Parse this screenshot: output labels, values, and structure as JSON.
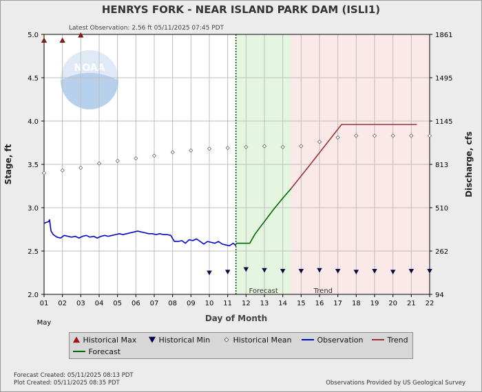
{
  "chart_data": {
    "type": "line",
    "title": "HENRYS FORK - NEAR ISLAND PARK DAM  (ISLI1)",
    "subtitle": "Latest Observation: 2.56 ft 05/11/2025 07:45 PDT",
    "xlabel": "Day of Month",
    "ylabel_left": "Stage, ft",
    "ylabel_right": "Discharge, cfs",
    "month_label": "May",
    "xlim": [
      1,
      22
    ],
    "ylim": [
      2.0,
      5.0
    ],
    "x_ticks": [
      "01",
      "02",
      "03",
      "04",
      "05",
      "06",
      "07",
      "08",
      "09",
      "10",
      "11",
      "12",
      "13",
      "14",
      "15",
      "16",
      "17",
      "18",
      "19",
      "20",
      "21",
      "22"
    ],
    "y_ticks": [
      2.0,
      2.5,
      3.0,
      3.5,
      4.0,
      4.5,
      5.0
    ],
    "y_tick_labels": [
      "2.0",
      "2.5",
      "3.0",
      "3.5",
      "4.0",
      "4.5",
      "5.0"
    ],
    "right_axis_ticks": [
      {
        "stage": 2.0,
        "label": "94"
      },
      {
        "stage": 2.5,
        "label": "262"
      },
      {
        "stage": 3.0,
        "label": "510"
      },
      {
        "stage": 3.5,
        "label": "813"
      },
      {
        "stage": 4.0,
        "label": "1145"
      },
      {
        "stage": 4.5,
        "label": "1495"
      },
      {
        "stage": 5.0,
        "label": "1861"
      }
    ],
    "grid": true,
    "observation_time": 11.45,
    "regions": [
      {
        "name": "Forecast",
        "from": 11.45,
        "to": 14.45,
        "color": "#e4f6e0"
      },
      {
        "name": "Trend",
        "from": 14.45,
        "to": 22.0,
        "color": "#fbe8e8"
      }
    ],
    "series": [
      {
        "name": "Observation",
        "color": "#0000cc",
        "style": "line",
        "x": [
          1.0,
          1.12,
          1.25,
          1.3,
          1.38,
          1.5,
          1.7,
          1.9,
          2.1,
          2.3,
          2.5,
          2.7,
          2.9,
          3.1,
          3.3,
          3.5,
          3.7,
          3.9,
          4.1,
          4.3,
          4.5,
          4.7,
          4.9,
          5.1,
          5.3,
          5.5,
          5.7,
          5.9,
          6.1,
          6.3,
          6.5,
          6.7,
          6.9,
          7.1,
          7.3,
          7.5,
          7.7,
          7.9,
          8.1,
          8.3,
          8.5,
          8.7,
          8.9,
          9.1,
          9.3,
          9.5,
          9.7,
          9.9,
          10.1,
          10.3,
          10.5,
          10.7,
          10.9,
          11.1,
          11.3,
          11.45
        ],
        "y": [
          2.82,
          2.83,
          2.84,
          2.86,
          2.73,
          2.69,
          2.66,
          2.65,
          2.68,
          2.67,
          2.66,
          2.67,
          2.65,
          2.67,
          2.68,
          2.66,
          2.67,
          2.65,
          2.67,
          2.68,
          2.67,
          2.68,
          2.69,
          2.7,
          2.69,
          2.7,
          2.71,
          2.72,
          2.73,
          2.72,
          2.71,
          2.7,
          2.7,
          2.69,
          2.7,
          2.69,
          2.69,
          2.68,
          2.61,
          2.61,
          2.62,
          2.59,
          2.63,
          2.62,
          2.64,
          2.61,
          2.58,
          2.61,
          2.6,
          2.59,
          2.61,
          2.58,
          2.57,
          2.56,
          2.59,
          2.56
        ]
      },
      {
        "name": "Forecast",
        "color": "#006600",
        "style": "line",
        "x": [
          11.45,
          12.2,
          12.5,
          13.0,
          13.5,
          14.0,
          14.45
        ],
        "y": [
          2.59,
          2.59,
          2.7,
          2.84,
          2.98,
          3.11,
          3.22
        ]
      },
      {
        "name": "Trend",
        "color": "#993333",
        "style": "line",
        "x": [
          14.45,
          15.5,
          16.5,
          17.2,
          21.3
        ],
        "y": [
          3.22,
          3.5,
          3.77,
          3.96,
          3.96
        ]
      },
      {
        "name": "Historical Mean",
        "color": "#666666",
        "style": "diamond",
        "x": [
          1,
          2,
          3,
          4,
          5,
          6,
          7,
          8,
          9,
          10,
          11,
          12,
          13,
          14,
          15,
          16,
          17,
          18,
          19,
          20,
          21,
          22
        ],
        "y": [
          3.4,
          3.43,
          3.46,
          3.51,
          3.54,
          3.57,
          3.6,
          3.64,
          3.66,
          3.68,
          3.69,
          3.7,
          3.71,
          3.7,
          3.71,
          3.76,
          3.81,
          3.83,
          3.83,
          3.83,
          3.83,
          3.83
        ]
      },
      {
        "name": "Historical Max",
        "color": "#cc0000",
        "style": "triangle-up",
        "x": [
          1,
          2,
          3
        ],
        "y": [
          4.93,
          4.93,
          4.99
        ]
      },
      {
        "name": "Historical Min",
        "color": "#000066",
        "style": "triangle-down",
        "x": [
          10,
          11,
          12,
          13,
          14,
          15,
          16,
          17,
          18,
          19,
          20,
          21,
          22
        ],
        "y": [
          2.25,
          2.26,
          2.29,
          2.28,
          2.27,
          2.27,
          2.28,
          2.27,
          2.26,
          2.27,
          2.26,
          2.27,
          2.27
        ]
      }
    ]
  },
  "logo": {
    "text": "NOAA",
    "color": "#a9c7e8"
  },
  "legend": {
    "items": [
      {
        "label": "Historical Max",
        "icon": "triangle-up-icon",
        "color": "#cc0000"
      },
      {
        "label": "Historical Min",
        "icon": "triangle-down-icon",
        "color": "#000066"
      },
      {
        "label": "Historical Mean",
        "icon": "diamond-icon",
        "color": "#666666"
      },
      {
        "label": "Observation",
        "icon": "line-icon",
        "color": "#0000cc"
      },
      {
        "label": "Trend",
        "icon": "line-icon",
        "color": "#993333"
      },
      {
        "label": "Forecast",
        "icon": "line-icon",
        "color": "#006600"
      }
    ]
  },
  "footer": {
    "forecast_created": "Forecast Created: 05/11/2025 08:13 PDT",
    "plot_created": "Plot Created: 05/11/2025 08:35 PDT",
    "provider": "Observations Provided by US Geological Survey"
  }
}
